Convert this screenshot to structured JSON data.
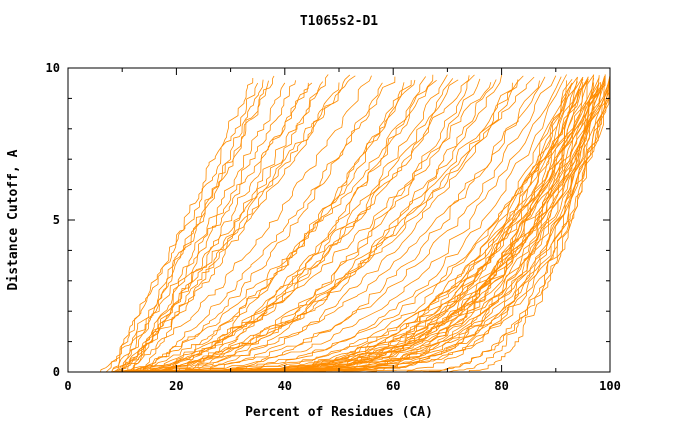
{
  "chart_data": {
    "type": "line",
    "title": "T1065s2-D1",
    "xlabel": "Percent of Residues (CA)",
    "ylabel": "Distance Cutoff, A",
    "xlim": [
      0,
      100
    ],
    "ylim": [
      0,
      10
    ],
    "x_ticks": [
      0,
      20,
      40,
      60,
      80,
      100
    ],
    "y_ticks": [
      0,
      5,
      10
    ],
    "x_minor_step": 10,
    "y_minor_step": 1,
    "grid": false,
    "legend": "none",
    "line_color": "#ff8c00",
    "axis_color": "#000000",
    "background": "#ffffff",
    "y_top_reached": 9.7,
    "curve_format": "[x_start_percent, x_percent_at_top, shape_exponent, seed] — each curve rises monotonically from y=0 at x_start to y≈9.5-9.8 at x_at_top",
    "curves": [
      [
        8,
        34,
        1.0,
        1
      ],
      [
        9,
        36,
        1.1,
        2
      ],
      [
        10,
        38,
        0.95,
        3
      ],
      [
        8,
        40,
        1.15,
        4
      ],
      [
        11,
        42,
        1.0,
        5
      ],
      [
        9,
        44,
        1.2,
        6
      ],
      [
        12,
        45,
        0.9,
        7
      ],
      [
        10,
        47,
        1.1,
        8
      ],
      [
        8,
        48,
        1.3,
        9
      ],
      [
        13,
        50,
        1.0,
        10
      ],
      [
        9,
        52,
        1.2,
        11
      ],
      [
        11,
        53,
        0.95,
        12
      ],
      [
        7,
        35,
        1.05,
        13
      ],
      [
        6,
        37,
        1.25,
        14
      ],
      [
        8,
        56,
        1.4,
        15
      ],
      [
        10,
        58,
        1.6,
        16
      ],
      [
        12,
        60,
        1.3,
        17
      ],
      [
        9,
        62,
        1.8,
        18
      ],
      [
        14,
        64,
        1.5,
        19
      ],
      [
        8,
        66,
        2.0,
        20
      ],
      [
        11,
        68,
        1.4,
        21
      ],
      [
        13,
        70,
        1.7,
        22
      ],
      [
        9,
        72,
        1.9,
        23
      ],
      [
        15,
        74,
        1.5,
        24
      ],
      [
        10,
        76,
        2.1,
        25
      ],
      [
        12,
        78,
        1.6,
        26
      ],
      [
        8,
        80,
        2.2,
        27
      ],
      [
        16,
        82,
        1.8,
        28
      ],
      [
        11,
        84,
        2.0,
        29
      ],
      [
        13,
        86,
        1.7,
        30
      ],
      [
        9,
        88,
        2.3,
        31
      ],
      [
        18,
        63,
        1.4,
        32
      ],
      [
        20,
        67,
        1.5,
        33
      ],
      [
        17,
        71,
        1.6,
        34
      ],
      [
        19,
        75,
        1.8,
        35
      ],
      [
        22,
        79,
        1.7,
        36
      ],
      [
        21,
        83,
        1.9,
        37
      ],
      [
        24,
        87,
        2.0,
        38
      ],
      [
        10,
        90,
        2.6,
        39
      ],
      [
        12,
        91,
        2.8,
        40
      ],
      [
        14,
        92,
        3.0,
        41
      ],
      [
        16,
        93,
        3.2,
        42
      ],
      [
        18,
        94,
        3.4,
        43
      ],
      [
        20,
        95,
        3.6,
        44
      ],
      [
        22,
        96,
        3.8,
        45
      ],
      [
        24,
        97,
        4.0,
        46
      ],
      [
        26,
        98,
        4.2,
        47
      ],
      [
        28,
        99,
        4.4,
        48
      ],
      [
        30,
        100,
        4.6,
        49
      ],
      [
        11,
        95,
        5.0,
        50
      ],
      [
        13,
        96,
        5.2,
        51
      ],
      [
        15,
        97,
        5.4,
        52
      ],
      [
        17,
        98,
        5.6,
        53
      ],
      [
        19,
        99,
        5.8,
        54
      ],
      [
        21,
        100,
        6.0,
        55
      ],
      [
        23,
        94,
        3.0,
        56
      ],
      [
        25,
        95,
        3.3,
        57
      ],
      [
        27,
        96,
        3.6,
        58
      ],
      [
        29,
        97,
        3.9,
        59
      ],
      [
        31,
        98,
        4.1,
        60
      ],
      [
        8,
        92,
        4.5,
        61
      ],
      [
        9,
        93,
        4.8,
        62
      ],
      [
        10,
        94,
        5.1,
        63
      ],
      [
        12,
        96,
        2.9,
        64
      ],
      [
        14,
        98,
        3.1,
        65
      ],
      [
        16,
        99,
        3.5,
        66
      ],
      [
        18,
        100,
        3.7,
        67
      ],
      [
        20,
        98,
        4.9,
        68
      ],
      [
        22,
        99,
        5.3,
        69
      ],
      [
        24,
        100,
        5.7,
        70
      ],
      [
        26,
        99,
        2.7,
        71
      ],
      [
        28,
        100,
        3.2,
        72
      ],
      [
        15,
        93,
        4.3,
        73
      ],
      [
        17,
        95,
        4.7,
        74
      ],
      [
        40,
        97,
        2.4,
        75
      ],
      [
        45,
        98,
        2.6,
        76
      ],
      [
        50,
        99,
        2.8,
        77
      ],
      [
        55,
        99,
        3.0,
        78
      ],
      [
        60,
        100,
        3.2,
        79
      ],
      [
        65,
        100,
        2.5,
        80
      ],
      [
        70,
        100,
        2.2,
        81
      ],
      [
        74,
        100,
        2.0,
        82
      ],
      [
        35,
        96,
        2.3,
        83
      ],
      [
        38,
        99,
        2.7,
        84
      ]
    ]
  }
}
